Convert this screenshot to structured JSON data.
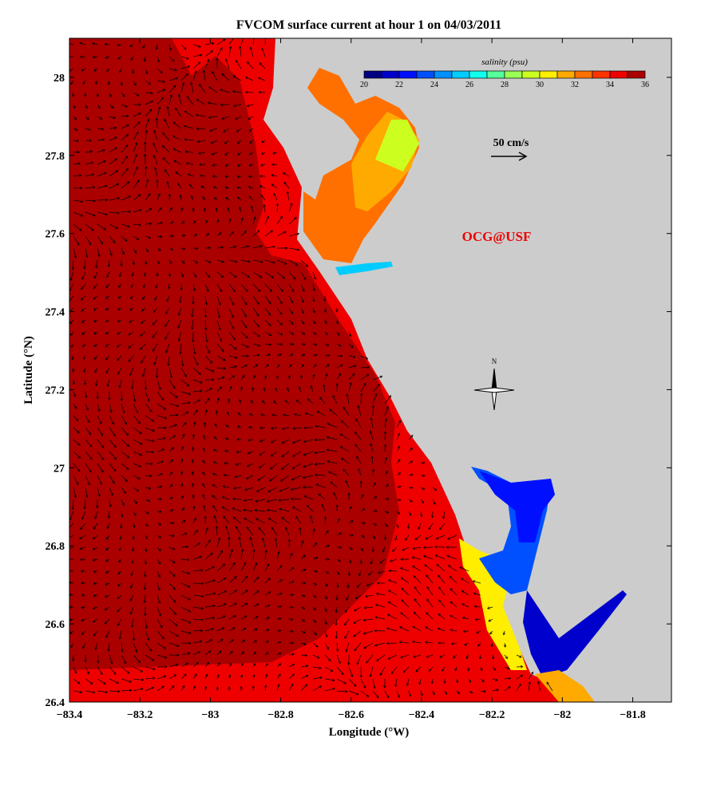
{
  "title": "FVCOM surface current at hour 1 on 04/03/2011",
  "chart_data": {
    "type": "heatmap",
    "title": "FVCOM surface current at hour 1 on 04/03/2011",
    "xlabel": "Longitude (°W)",
    "ylabel": "Latitude (°N)",
    "xlim": [
      -83.4,
      -81.69
    ],
    "ylim": [
      26.4,
      28.1
    ],
    "xticks": [
      "-83.4",
      "-83.2",
      "-83",
      "-82.8",
      "-82.6",
      "-82.4",
      "-82.2",
      "-82",
      "-81.8"
    ],
    "yticks": [
      "26.4",
      "26.6",
      "26.8",
      "27",
      "27.2",
      "27.4",
      "27.6",
      "27.8",
      "28"
    ],
    "colorbar": {
      "label": "salinity (psu)",
      "range": [
        20,
        36
      ],
      "ticks": [
        "20",
        "22",
        "24",
        "26",
        "28",
        "30",
        "32",
        "34",
        "36"
      ],
      "colors": [
        "#000080",
        "#0000cc",
        "#0010ff",
        "#0050ff",
        "#0090ff",
        "#00ccff",
        "#10ffee",
        "#55ff99",
        "#99ff55",
        "#ccff20",
        "#ffee00",
        "#ffaa00",
        "#ff7000",
        "#ff3300",
        "#ee0000",
        "#aa0000"
      ]
    },
    "scale_arrow": "50 cm/s",
    "annotation": "OCG@USF",
    "compass": "N"
  },
  "colors": {
    "land": "#cccccc",
    "offshore": "#aa0000",
    "coastal": "#ee0000",
    "tampa": "#ff7000",
    "tampa_inner": "#ffaa00",
    "charlotte": "#0010ff"
  }
}
